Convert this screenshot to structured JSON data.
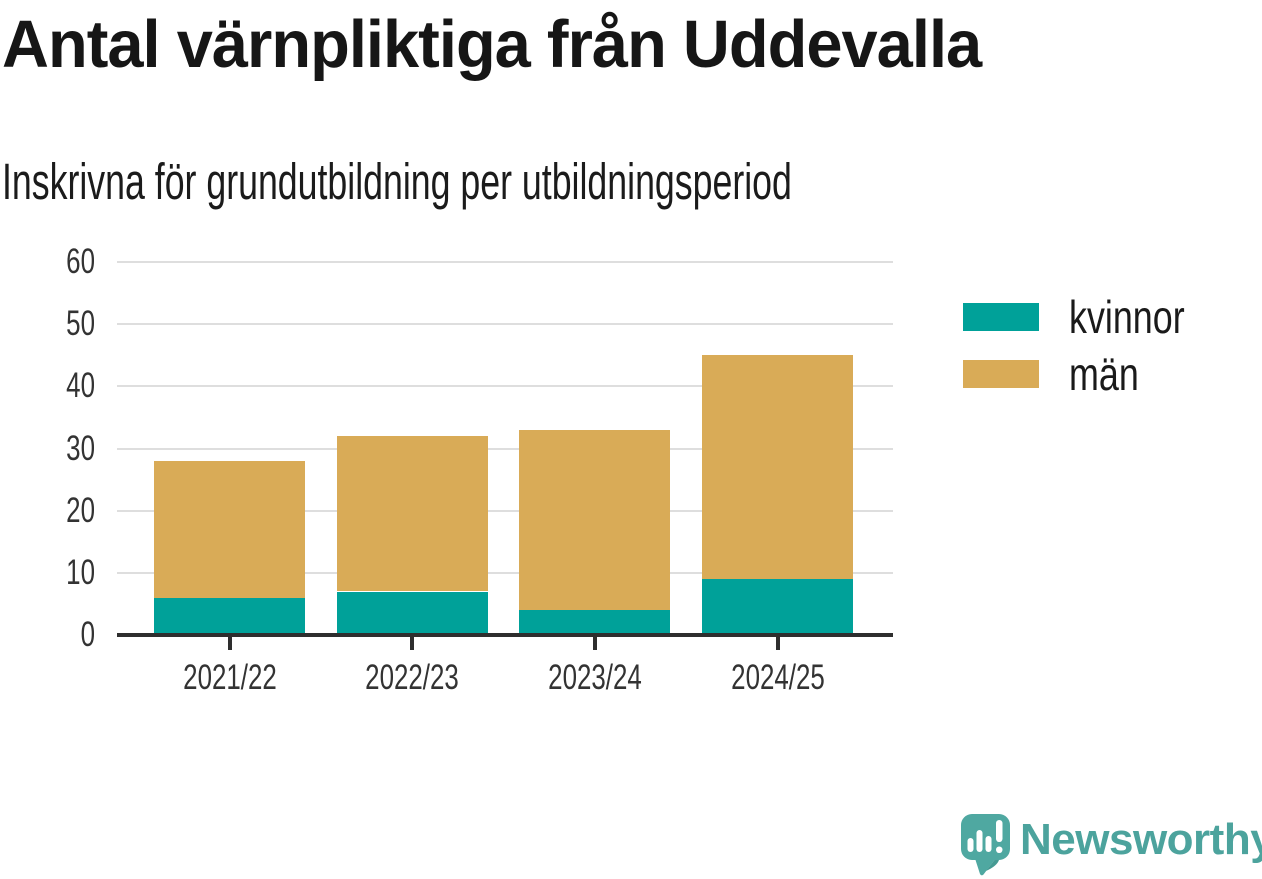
{
  "header": {
    "title": "Antal värnpliktiga från Uddevalla",
    "subtitle": "Inskrivna för grundutbildning per utbildningsperiod"
  },
  "chart_data": {
    "type": "bar",
    "stacked": true,
    "categories": [
      "2021/22",
      "2022/23",
      "2023/24",
      "2024/25"
    ],
    "series": [
      {
        "name": "kvinnor",
        "color": "#00A199",
        "values": [
          6,
          7,
          4,
          9
        ]
      },
      {
        "name": "män",
        "color": "#D9AB57",
        "values": [
          22,
          25,
          29,
          36
        ]
      }
    ],
    "totals": [
      28,
      32,
      33,
      45
    ],
    "title": "Antal värnpliktiga från Uddevalla",
    "subtitle": "Inskrivna för grundutbildning per utbildningsperiod",
    "xlabel": "",
    "ylabel": "",
    "ylim": [
      0,
      60
    ],
    "yticks": [
      0,
      10,
      20,
      30,
      40,
      50,
      60
    ],
    "grid": true,
    "legend_position": "right",
    "grid_color": "#DEDEDE",
    "axis_color": "#2E2E2E",
    "label_color": "#333333"
  },
  "branding": {
    "logo_text": "Newsworthy",
    "brand_color": "#4CA39D",
    "logo_icon": "newsworthy-speech-bubble-bar-chart-icon"
  }
}
